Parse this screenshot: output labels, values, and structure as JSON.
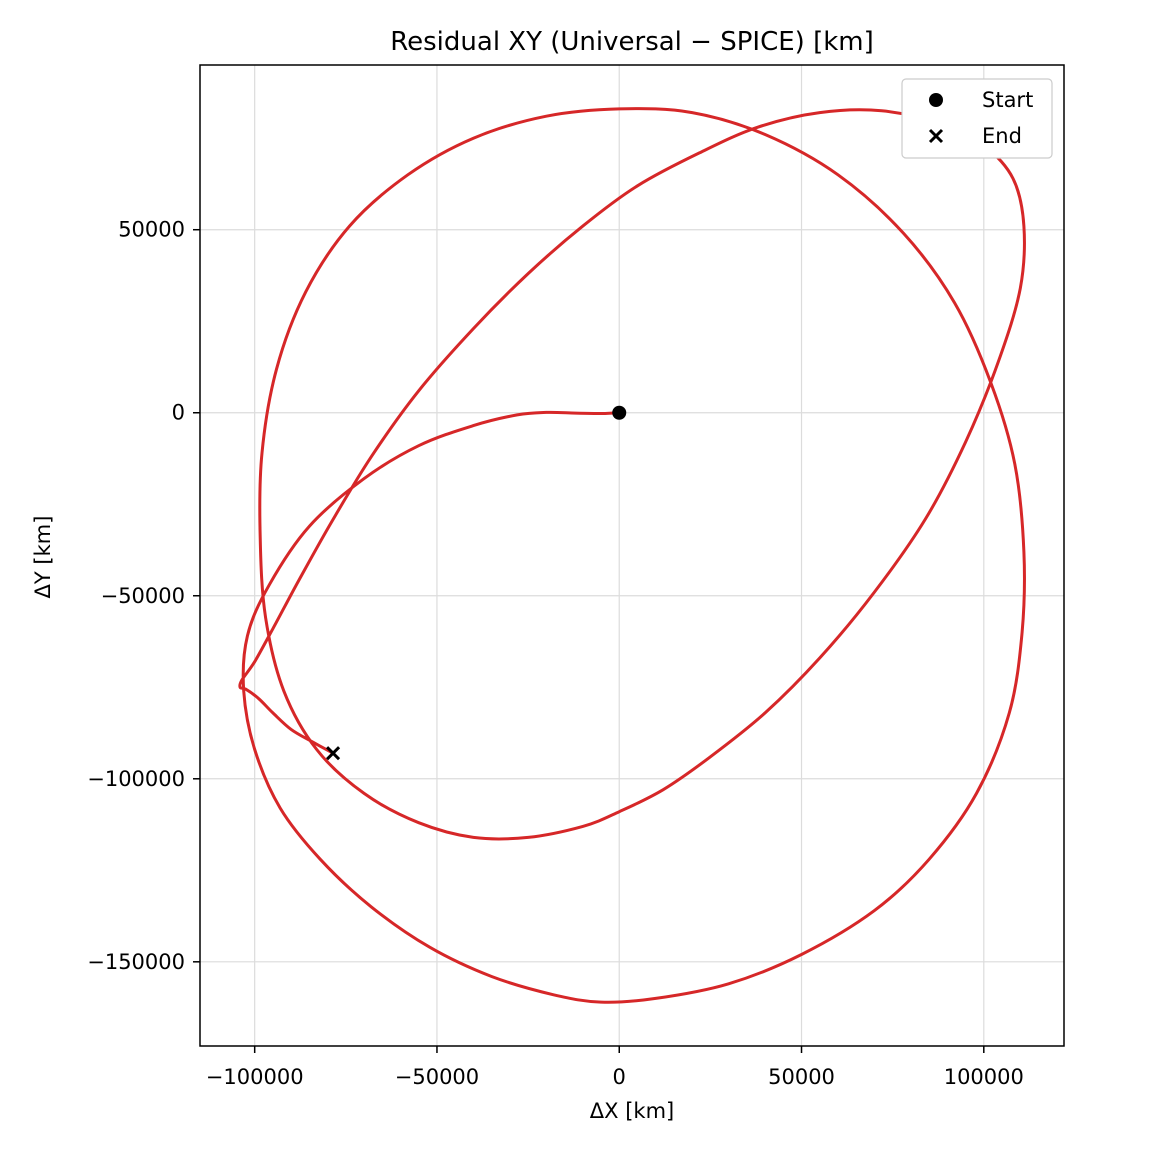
{
  "chart_data": {
    "type": "scatter",
    "title": "Residual XY (Universal − SPICE) [km]",
    "xlabel": "ΔX [km]",
    "ylabel": "ΔY [km]",
    "xlim": [
      -115000,
      122000
    ],
    "ylim": [
      -173000,
      95000
    ],
    "xticks": [
      -100000,
      -50000,
      0,
      50000,
      100000
    ],
    "xtick_labels": [
      "−100000",
      "−50000",
      "0",
      "50000",
      "100000"
    ],
    "yticks": [
      50000,
      0,
      -50000,
      -100000,
      -150000
    ],
    "ytick_labels": [
      "50000",
      "0",
      "−50000",
      "−100000",
      "−150000"
    ],
    "grid": true,
    "legend_position": "top-right",
    "colors": {
      "trajectory": "#d62728",
      "markers": "#000000"
    },
    "series": [
      {
        "x": [
          0,
          -5000,
          -12000,
          -20000,
          -28000,
          -40000,
          -55000,
          -70000,
          -85000,
          -96000,
          -102000,
          -103000,
          -100000,
          -93000,
          -82000,
          -68000,
          -52000,
          -35000,
          -18000,
          -5000,
          10000,
          30000,
          50000,
          70000,
          85000,
          98000,
          107000,
          110500,
          111000,
          108500,
          102000,
          92000,
          78000,
          60000,
          40000,
          20000,
          0,
          -20000,
          -40000,
          -58000,
          -74000,
          -86000,
          -94000,
          -98000,
          -98500,
          -97000,
          -92000,
          -83000,
          -70000,
          -55000,
          -40000,
          -25000,
          -10000,
          0,
          12000,
          25000,
          40000,
          55000,
          70000,
          84000,
          95000,
          104000,
          110000,
          111000,
          108000,
          100000,
          88000,
          72000,
          55000,
          38000,
          22000,
          5000,
          -10000,
          -25000,
          -40000,
          -55000,
          -68000,
          -79000,
          -88000,
          -95000,
          -100000,
          -103500,
          -104000,
          -102500,
          -99000,
          -95000,
          -90000,
          -84000,
          -78500
        ],
        "y": [
          0,
          -200,
          -100,
          100,
          -600,
          -3500,
          -9000,
          -18000,
          -31000,
          -47000,
          -61000,
          -76000,
          -92000,
          -108000,
          -122000,
          -135000,
          -146000,
          -154000,
          -159000,
          -161000,
          -160000,
          -156000,
          -148000,
          -136000,
          -122000,
          -104000,
          -82000,
          -60000,
          -38000,
          -14000,
          8000,
          30000,
          49000,
          65000,
          76000,
          82000,
          83000,
          81000,
          75000,
          65000,
          51000,
          33000,
          12000,
          -11000,
          -34000,
          -56000,
          -76000,
          -92000,
          -104000,
          -112000,
          -116000,
          -116000,
          -113000,
          -109000,
          -103000,
          -94000,
          -82000,
          -67000,
          -49000,
          -29000,
          -8000,
          14000,
          34000,
          51000,
          64000,
          73000,
          79000,
          82500,
          82000,
          78000,
          71000,
          62000,
          51000,
          38000,
          23000,
          6000,
          -12000,
          -30000,
          -46000,
          -59000,
          -68000,
          -73000,
          -75000,
          -75500,
          -78000,
          -82000,
          -86500,
          -90000,
          -93000
        ]
      }
    ],
    "markers": [
      {
        "label": "Start",
        "shape": "circle",
        "x": 0,
        "y": 0
      },
      {
        "label": "End",
        "shape": "x",
        "x": -78500,
        "y": -93000
      }
    ]
  }
}
